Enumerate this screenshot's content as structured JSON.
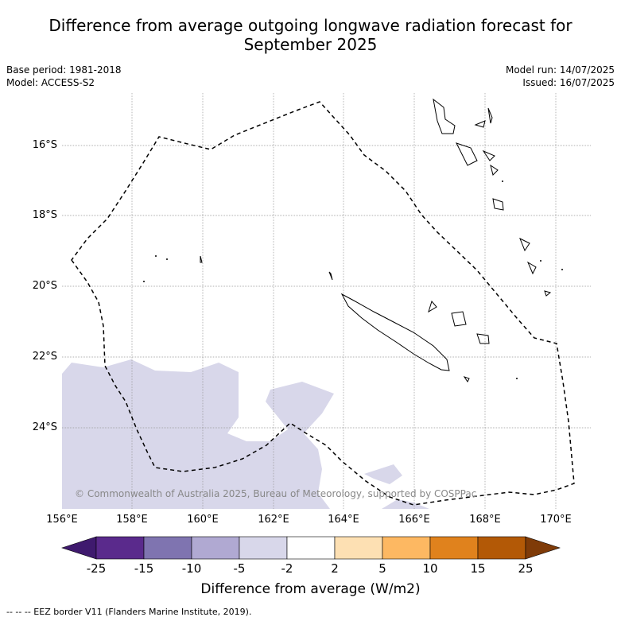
{
  "title_line1": "Difference from average outgoing longwave radiation forecast for",
  "title_line2": "September 2025",
  "base_period": "Base period: 1981-2018",
  "model": "Model: ACCESS-S2",
  "model_run": "Model run: 14/07/2025",
  "issued": "Issued: 16/07/2025",
  "copyright": "© Commonwealth of Australia 2025, Bureau of Meteorology, supported by COSPPac",
  "lat_labels": [
    "16°S",
    "18°S",
    "20°S",
    "22°S",
    "24°S"
  ],
  "lon_labels": [
    "156°E",
    "158°E",
    "160°E",
    "162°E",
    "164°E",
    "166°E",
    "168°E",
    "170°E"
  ],
  "colorbar": {
    "ticks": [
      "-25",
      "-15",
      "-10",
      "-5",
      "-2",
      "2",
      "5",
      "10",
      "15",
      "25"
    ],
    "colors": [
      "#3f1a6e",
      "#5a2a8c",
      "#7f74b0",
      "#b0a9d2",
      "#d8d7ea",
      "#ffffff",
      "#fde0b3",
      "#fdb862",
      "#e0821d",
      "#b35906",
      "#7f3b08"
    ],
    "label": "Difference from average (W/m2)"
  },
  "footnote": "--  --  -- EEZ border V11 (Flanders Marine Institute, 2019).",
  "anomaly_fill_color": "#d8d7ea"
}
